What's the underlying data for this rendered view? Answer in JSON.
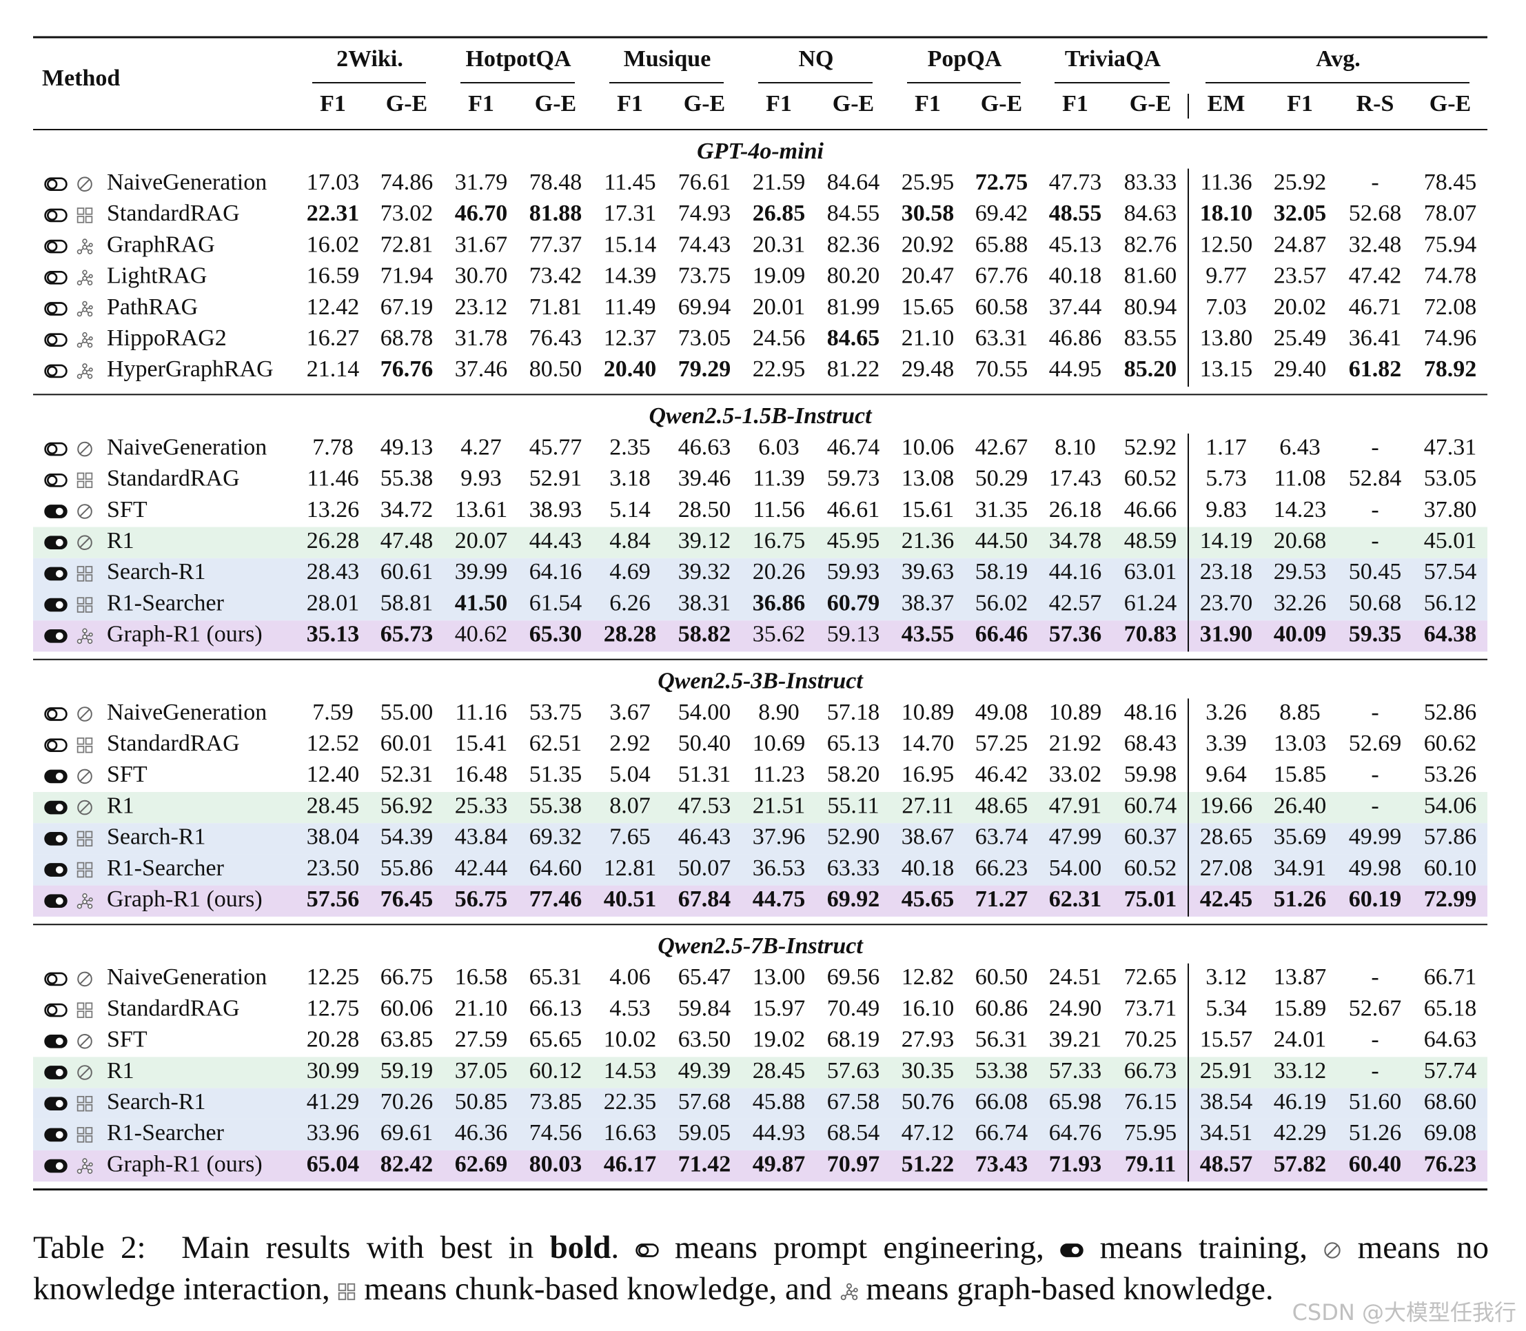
{
  "header": {
    "method": "Method",
    "groups": [
      {
        "name": "2Wiki.",
        "cols": [
          "F1",
          "G-E"
        ]
      },
      {
        "name": "HotpotQA",
        "cols": [
          "F1",
          "G-E"
        ]
      },
      {
        "name": "Musique",
        "cols": [
          "F1",
          "G-E"
        ]
      },
      {
        "name": "NQ",
        "cols": [
          "F1",
          "G-E"
        ]
      },
      {
        "name": "PopQA",
        "cols": [
          "F1",
          "G-E"
        ]
      },
      {
        "name": "TriviaQA",
        "cols": [
          "F1",
          "G-E"
        ]
      },
      {
        "name": "Avg.",
        "cols": [
          "EM",
          "F1",
          "R-S",
          "G-E"
        ]
      }
    ]
  },
  "sections": [
    {
      "title": "GPT-4o-mini",
      "rows": [
        {
          "method": "NaiveGeneration",
          "mode": "prompt",
          "knowledge": "none",
          "values": [
            "17.03",
            "74.86",
            "31.79",
            "78.48",
            "11.45",
            "76.61",
            "21.59",
            "84.64",
            "25.95",
            "72.75",
            "47.73",
            "83.33",
            "11.36",
            "25.92",
            "-",
            "78.45"
          ],
          "bold": [
            9
          ]
        },
        {
          "method": "StandardRAG",
          "mode": "prompt",
          "knowledge": "chunk",
          "values": [
            "22.31",
            "73.02",
            "46.70",
            "81.88",
            "17.31",
            "74.93",
            "26.85",
            "84.55",
            "30.58",
            "69.42",
            "48.55",
            "84.63",
            "18.10",
            "32.05",
            "52.68",
            "78.07"
          ],
          "bold": [
            0,
            2,
            3,
            6,
            8,
            10,
            12,
            13
          ]
        },
        {
          "method": "GraphRAG",
          "mode": "prompt",
          "knowledge": "graph",
          "values": [
            "16.02",
            "72.81",
            "31.67",
            "77.37",
            "15.14",
            "74.43",
            "20.31",
            "82.36",
            "20.92",
            "65.88",
            "45.13",
            "82.76",
            "12.50",
            "24.87",
            "32.48",
            "75.94"
          ],
          "bold": []
        },
        {
          "method": "LightRAG",
          "mode": "prompt",
          "knowledge": "graph",
          "values": [
            "16.59",
            "71.94",
            "30.70",
            "73.42",
            "14.39",
            "73.75",
            "19.09",
            "80.20",
            "20.47",
            "67.76",
            "40.18",
            "81.60",
            "9.77",
            "23.57",
            "47.42",
            "74.78"
          ],
          "bold": []
        },
        {
          "method": "PathRAG",
          "mode": "prompt",
          "knowledge": "graph",
          "values": [
            "12.42",
            "67.19",
            "23.12",
            "71.81",
            "11.49",
            "69.94",
            "20.01",
            "81.99",
            "15.65",
            "60.58",
            "37.44",
            "80.94",
            "7.03",
            "20.02",
            "46.71",
            "72.08"
          ],
          "bold": []
        },
        {
          "method": "HippoRAG2",
          "mode": "prompt",
          "knowledge": "graph",
          "values": [
            "16.27",
            "68.78",
            "31.78",
            "76.43",
            "12.37",
            "73.05",
            "24.56",
            "84.65",
            "21.10",
            "63.31",
            "46.86",
            "83.55",
            "13.80",
            "25.49",
            "36.41",
            "74.96"
          ],
          "bold": [
            7
          ]
        },
        {
          "method": "HyperGraphRAG",
          "mode": "prompt",
          "knowledge": "graph",
          "values": [
            "21.14",
            "76.76",
            "37.46",
            "80.50",
            "20.40",
            "79.29",
            "22.95",
            "81.22",
            "29.48",
            "70.55",
            "44.95",
            "85.20",
            "13.15",
            "29.40",
            "61.82",
            "78.92"
          ],
          "bold": [
            1,
            4,
            5,
            11,
            14,
            15
          ]
        }
      ]
    },
    {
      "title": "Qwen2.5-1.5B-Instruct",
      "rows": [
        {
          "method": "NaiveGeneration",
          "mode": "prompt",
          "knowledge": "none",
          "values": [
            "7.78",
            "49.13",
            "4.27",
            "45.77",
            "2.35",
            "46.63",
            "6.03",
            "46.74",
            "10.06",
            "42.67",
            "8.10",
            "52.92",
            "1.17",
            "6.43",
            "-",
            "47.31"
          ],
          "bold": []
        },
        {
          "method": "StandardRAG",
          "mode": "prompt",
          "knowledge": "chunk",
          "values": [
            "11.46",
            "55.38",
            "9.93",
            "52.91",
            "3.18",
            "39.46",
            "11.39",
            "59.73",
            "13.08",
            "50.29",
            "17.43",
            "60.52",
            "5.73",
            "11.08",
            "52.84",
            "53.05"
          ],
          "bold": []
        },
        {
          "method": "SFT",
          "mode": "train",
          "knowledge": "none",
          "values": [
            "13.26",
            "34.72",
            "13.61",
            "38.93",
            "5.14",
            "28.50",
            "11.56",
            "46.61",
            "15.61",
            "31.35",
            "26.18",
            "46.66",
            "9.83",
            "14.23",
            "-",
            "37.80"
          ],
          "bold": []
        },
        {
          "method": "R1",
          "mode": "train",
          "knowledge": "none",
          "highlight": "#e5f3e9",
          "values": [
            "26.28",
            "47.48",
            "20.07",
            "44.43",
            "4.84",
            "39.12",
            "16.75",
            "45.95",
            "21.36",
            "44.50",
            "34.78",
            "48.59",
            "14.19",
            "20.68",
            "-",
            "45.01"
          ],
          "bold": []
        },
        {
          "method": "Search-R1",
          "mode": "train",
          "knowledge": "chunk",
          "highlight": "#e2eaf6",
          "values": [
            "28.43",
            "60.61",
            "39.99",
            "64.16",
            "4.69",
            "39.32",
            "20.26",
            "59.93",
            "39.63",
            "58.19",
            "44.16",
            "63.01",
            "23.18",
            "29.53",
            "50.45",
            "57.54"
          ],
          "bold": []
        },
        {
          "method": "R1-Searcher",
          "mode": "train",
          "knowledge": "chunk",
          "highlight": "#e2eaf6",
          "values": [
            "28.01",
            "58.81",
            "41.50",
            "61.54",
            "6.26",
            "38.31",
            "36.86",
            "60.79",
            "38.37",
            "56.02",
            "42.57",
            "61.24",
            "23.70",
            "32.26",
            "50.68",
            "56.12"
          ],
          "bold": [
            2,
            6,
            7
          ]
        },
        {
          "method": "Graph-R1 (ours)",
          "mode": "train",
          "knowledge": "graph",
          "highlight": "#e8d9f2",
          "values": [
            "35.13",
            "65.73",
            "40.62",
            "65.30",
            "28.28",
            "58.82",
            "35.62",
            "59.13",
            "43.55",
            "66.46",
            "57.36",
            "70.83",
            "31.90",
            "40.09",
            "59.35",
            "64.38"
          ],
          "bold": [
            0,
            1,
            3,
            4,
            5,
            8,
            9,
            10,
            11,
            12,
            13,
            14,
            15
          ]
        }
      ]
    },
    {
      "title": "Qwen2.5-3B-Instruct",
      "rows": [
        {
          "method": "NaiveGeneration",
          "mode": "prompt",
          "knowledge": "none",
          "values": [
            "7.59",
            "55.00",
            "11.16",
            "53.75",
            "3.67",
            "54.00",
            "8.90",
            "57.18",
            "10.89",
            "49.08",
            "10.89",
            "48.16",
            "3.26",
            "8.85",
            "-",
            "52.86"
          ],
          "bold": []
        },
        {
          "method": "StandardRAG",
          "mode": "prompt",
          "knowledge": "chunk",
          "values": [
            "12.52",
            "60.01",
            "15.41",
            "62.51",
            "2.92",
            "50.40",
            "10.69",
            "65.13",
            "14.70",
            "57.25",
            "21.92",
            "68.43",
            "3.39",
            "13.03",
            "52.69",
            "60.62"
          ],
          "bold": []
        },
        {
          "method": "SFT",
          "mode": "train",
          "knowledge": "none",
          "values": [
            "12.40",
            "52.31",
            "16.48",
            "51.35",
            "5.04",
            "51.31",
            "11.23",
            "58.20",
            "16.95",
            "46.42",
            "33.02",
            "59.98",
            "9.64",
            "15.85",
            "-",
            "53.26"
          ],
          "bold": []
        },
        {
          "method": "R1",
          "mode": "train",
          "knowledge": "none",
          "highlight": "#e5f3e9",
          "values": [
            "28.45",
            "56.92",
            "25.33",
            "55.38",
            "8.07",
            "47.53",
            "21.51",
            "55.11",
            "27.11",
            "48.65",
            "47.91",
            "60.74",
            "19.66",
            "26.40",
            "-",
            "54.06"
          ],
          "bold": []
        },
        {
          "method": "Search-R1",
          "mode": "train",
          "knowledge": "chunk",
          "highlight": "#e2eaf6",
          "values": [
            "38.04",
            "54.39",
            "43.84",
            "69.32",
            "7.65",
            "46.43",
            "37.96",
            "52.90",
            "38.67",
            "63.74",
            "47.99",
            "60.37",
            "28.65",
            "35.69",
            "49.99",
            "57.86"
          ],
          "bold": []
        },
        {
          "method": "R1-Searcher",
          "mode": "train",
          "knowledge": "chunk",
          "highlight": "#e2eaf6",
          "values": [
            "23.50",
            "55.86",
            "42.44",
            "64.60",
            "12.81",
            "50.07",
            "36.53",
            "63.33",
            "40.18",
            "66.23",
            "54.00",
            "60.52",
            "27.08",
            "34.91",
            "49.98",
            "60.10"
          ],
          "bold": []
        },
        {
          "method": "Graph-R1 (ours)",
          "mode": "train",
          "knowledge": "graph",
          "highlight": "#e8d9f2",
          "values": [
            "57.56",
            "76.45",
            "56.75",
            "77.46",
            "40.51",
            "67.84",
            "44.75",
            "69.92",
            "45.65",
            "71.27",
            "62.31",
            "75.01",
            "42.45",
            "51.26",
            "60.19",
            "72.99"
          ],
          "bold": [
            0,
            1,
            2,
            3,
            4,
            5,
            6,
            7,
            8,
            9,
            10,
            11,
            12,
            13,
            14,
            15
          ]
        }
      ]
    },
    {
      "title": "Qwen2.5-7B-Instruct",
      "rows": [
        {
          "method": "NaiveGeneration",
          "mode": "prompt",
          "knowledge": "none",
          "values": [
            "12.25",
            "66.75",
            "16.58",
            "65.31",
            "4.06",
            "65.47",
            "13.00",
            "69.56",
            "12.82",
            "60.50",
            "24.51",
            "72.65",
            "3.12",
            "13.87",
            "-",
            "66.71"
          ],
          "bold": []
        },
        {
          "method": "StandardRAG",
          "mode": "prompt",
          "knowledge": "chunk",
          "values": [
            "12.75",
            "60.06",
            "21.10",
            "66.13",
            "4.53",
            "59.84",
            "15.97",
            "70.49",
            "16.10",
            "60.86",
            "24.90",
            "73.71",
            "5.34",
            "15.89",
            "52.67",
            "65.18"
          ],
          "bold": []
        },
        {
          "method": "SFT",
          "mode": "train",
          "knowledge": "none",
          "values": [
            "20.28",
            "63.85",
            "27.59",
            "65.65",
            "10.02",
            "63.50",
            "19.02",
            "68.19",
            "27.93",
            "56.31",
            "39.21",
            "70.25",
            "15.57",
            "24.01",
            "-",
            "64.63"
          ],
          "bold": []
        },
        {
          "method": "R1",
          "mode": "train",
          "knowledge": "none",
          "highlight": "#e5f3e9",
          "values": [
            "30.99",
            "59.19",
            "37.05",
            "60.12",
            "14.53",
            "49.39",
            "28.45",
            "57.63",
            "30.35",
            "53.38",
            "57.33",
            "66.73",
            "25.91",
            "33.12",
            "-",
            "57.74"
          ],
          "bold": []
        },
        {
          "method": "Search-R1",
          "mode": "train",
          "knowledge": "chunk",
          "highlight": "#e2eaf6",
          "values": [
            "41.29",
            "70.26",
            "50.85",
            "73.85",
            "22.35",
            "57.68",
            "45.88",
            "67.58",
            "50.76",
            "66.08",
            "65.98",
            "76.15",
            "38.54",
            "46.19",
            "51.60",
            "68.60"
          ],
          "bold": []
        },
        {
          "method": "R1-Searcher",
          "mode": "train",
          "knowledge": "chunk",
          "highlight": "#e2eaf6",
          "values": [
            "33.96",
            "69.61",
            "46.36",
            "74.56",
            "16.63",
            "59.05",
            "44.93",
            "68.54",
            "47.12",
            "66.74",
            "64.76",
            "75.95",
            "34.51",
            "42.29",
            "51.26",
            "69.08"
          ],
          "bold": []
        },
        {
          "method": "Graph-R1 (ours)",
          "mode": "train",
          "knowledge": "graph",
          "highlight": "#e8d9f2",
          "values": [
            "65.04",
            "82.42",
            "62.69",
            "80.03",
            "46.17",
            "71.42",
            "49.87",
            "70.97",
            "51.22",
            "73.43",
            "71.93",
            "79.11",
            "48.57",
            "57.82",
            "60.40",
            "76.23"
          ],
          "bold": [
            0,
            1,
            2,
            3,
            4,
            5,
            6,
            7,
            8,
            9,
            10,
            11,
            12,
            13,
            14,
            15
          ]
        }
      ]
    }
  ],
  "caption": {
    "parts": [
      {
        "text": "Table 2:"
      },
      {
        "text": "Main results with best in "
      },
      {
        "text": "bold",
        "weight": "bold"
      },
      {
        "text": ". "
      },
      {
        "icon": "prompt"
      },
      {
        "text": " means prompt engineering, "
      },
      {
        "icon": "train"
      },
      {
        "text": " means training, "
      },
      {
        "icon": "none"
      },
      {
        "text": " means no knowledge interaction, "
      },
      {
        "icon": "chunk"
      },
      {
        "text": " means chunk-based knowledge, and "
      },
      {
        "icon": "graph"
      },
      {
        "text": " means graph-based knowledge."
      }
    ]
  },
  "watermark": "CSDN @大模型任我行"
}
